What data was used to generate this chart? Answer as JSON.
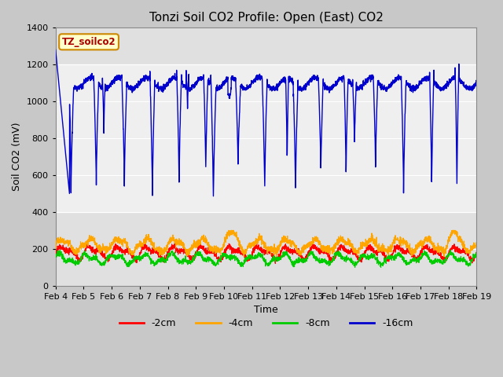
{
  "title": "Tonzi Soil CO2 Profile: Open (East) CO2",
  "ylabel": "Soil CO2 (mV)",
  "xlabel": "Time",
  "ylim": [
    0,
    1400
  ],
  "yticks": [
    0,
    200,
    400,
    600,
    800,
    1000,
    1200,
    1400
  ],
  "xtick_labels": [
    "Feb 4",
    "Feb 5",
    "Feb 6",
    "Feb 7",
    "Feb 8",
    "Feb 9",
    "Feb 10",
    "Feb 11",
    "Feb 12",
    "Feb 13",
    "Feb 14",
    "Feb 15",
    "Feb 16",
    "Feb 17",
    "Feb 18",
    "Feb 19"
  ],
  "bg_color": "#e0e0e0",
  "legend_label": "TZ_soilco2",
  "legend_bg": "#ffffcc",
  "legend_border": "#cc8800",
  "series_colors": {
    "depth_2cm": "#ff0000",
    "depth_4cm": "#ffa500",
    "depth_8cm": "#00cc00",
    "depth_16cm": "#0000cc"
  },
  "series_labels": [
    "-2cm",
    "-4cm",
    "-8cm",
    "-16cm"
  ],
  "shaded_band_lower": 400,
  "shaded_band_upper": 1200,
  "title_fontsize": 11,
  "axis_label_fontsize": 9,
  "tick_fontsize": 8
}
